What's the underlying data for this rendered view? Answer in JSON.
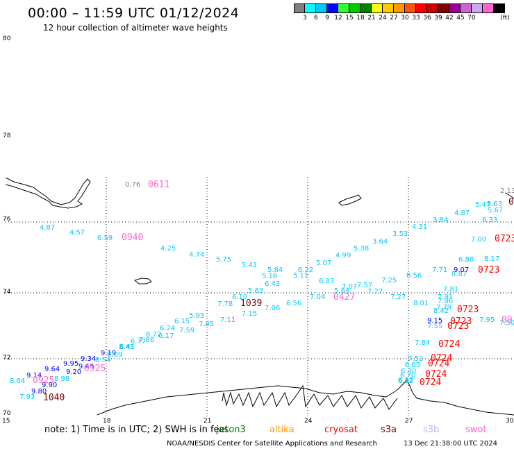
{
  "title": "00:00 – 11:59 UTC 01/12/2024",
  "subtitle": "12 hour collection of altimeter wave heights",
  "legend": {
    "unit": "(ft)",
    "colors": [
      "#808080",
      "#00ffff",
      "#00c8ff",
      "#0000ff",
      "#33ff33",
      "#00cc00",
      "#008000",
      "#ffff00",
      "#ffcc00",
      "#ff9900",
      "#ff5500",
      "#ff0000",
      "#cc0000",
      "#800000",
      "#990099",
      "#cc66cc",
      "#ccaaee",
      "#ff66cc",
      "#000000"
    ],
    "ticks": [
      "3",
      "6",
      "9",
      "12",
      "15",
      "18",
      "21",
      "24",
      "27",
      "30",
      "33",
      "36",
      "39",
      "42",
      "45",
      "70"
    ]
  },
  "axes": {
    "lat_labels": [
      "80",
      "78",
      "76",
      "74",
      "72",
      "70"
    ],
    "lon_labels": [
      "15",
      "18",
      "21",
      "24",
      "27",
      "30"
    ]
  },
  "observations": [
    {
      "text": "0.76",
      "color": "#808080"
    },
    {
      "text": "0611",
      "color": "#ff66cc",
      "big": true
    },
    {
      "text": "4.87",
      "color": "#00c8ff"
    },
    {
      "text": "4.57",
      "color": "#00c8ff"
    },
    {
      "text": "6.59",
      "color": "#00c8ff"
    },
    {
      "text": "0940",
      "color": "#ff66cc",
      "big": true
    },
    {
      "text": "4.25",
      "color": "#00c8ff"
    },
    {
      "text": "4.74",
      "color": "#00c8ff"
    },
    {
      "text": "5.75",
      "color": "#00c8ff"
    },
    {
      "text": "5.41",
      "color": "#00c8ff"
    },
    {
      "text": "5.84",
      "color": "#00c8ff"
    },
    {
      "text": "5.18",
      "color": "#00c8ff"
    },
    {
      "text": "6.22",
      "color": "#00c8ff"
    },
    {
      "text": "5.11",
      "color": "#00c8ff"
    },
    {
      "text": "5.07",
      "color": "#00c8ff"
    },
    {
      "text": "4.99",
      "color": "#00c8ff"
    },
    {
      "text": "5.38",
      "color": "#00c8ff"
    },
    {
      "text": "3.64",
      "color": "#00c8ff"
    },
    {
      "text": "3.53",
      "color": "#00c8ff"
    },
    {
      "text": "4.31",
      "color": "#00c8ff"
    },
    {
      "text": "3.84",
      "color": "#00c8ff"
    },
    {
      "text": "4.87",
      "color": "#00c8ff"
    },
    {
      "text": "5.47",
      "color": "#00c8ff"
    },
    {
      "text": "5.63",
      "color": "#00c8ff"
    },
    {
      "text": "5.67",
      "color": "#00c8ff"
    },
    {
      "text": "6.33",
      "color": "#00c8ff"
    },
    {
      "text": "2.13",
      "color": "#808080"
    },
    {
      "text": "3.46",
      "color": "#00c8ff"
    },
    {
      "text": "07",
      "color": "#800000",
      "big": true
    },
    {
      "text": "7.00",
      "color": "#00c8ff"
    },
    {
      "text": "0723",
      "color": "#ff0000",
      "big": true
    },
    {
      "text": "8.17",
      "color": "#00c8ff"
    },
    {
      "text": "6.88",
      "color": "#00c8ff"
    },
    {
      "text": "9.07",
      "color": "#0000ff"
    },
    {
      "text": "0723",
      "color": "#ff0000",
      "big": true
    },
    {
      "text": "7.71",
      "color": "#00c8ff"
    },
    {
      "text": "8.87",
      "color": "#00c8ff"
    },
    {
      "text": "8.56",
      "color": "#00c8ff"
    },
    {
      "text": "7.25",
      "color": "#00c8ff"
    },
    {
      "text": "6.83",
      "color": "#00c8ff"
    },
    {
      "text": "7.07",
      "color": "#00c8ff"
    },
    {
      "text": "7.57",
      "color": "#00c8ff"
    },
    {
      "text": "5.84",
      "color": "#00c8ff"
    },
    {
      "text": "7.27",
      "color": "#00c8ff"
    },
    {
      "text": "7.27",
      "color": "#00c8ff"
    },
    {
      "text": "6.43",
      "color": "#00c8ff"
    },
    {
      "text": "5.63",
      "color": "#00c8ff"
    },
    {
      "text": "6.10",
      "color": "#00c8ff"
    },
    {
      "text": "7.78",
      "color": "#00c8ff"
    },
    {
      "text": "1039",
      "color": "#800000",
      "big": true
    },
    {
      "text": "7.06",
      "color": "#00c8ff"
    },
    {
      "text": "6.56",
      "color": "#00c8ff"
    },
    {
      "text": "7.04",
      "color": "#00c8ff"
    },
    {
      "text": "0427",
      "color": "#ff66cc",
      "big": true
    },
    {
      "text": "7.15",
      "color": "#00c8ff"
    },
    {
      "text": "7.11",
      "color": "#00c8ff"
    },
    {
      "text": "5.93",
      "color": "#00c8ff"
    },
    {
      "text": "7.85",
      "color": "#00c8ff"
    },
    {
      "text": "6.15",
      "color": "#00c8ff"
    },
    {
      "text": "7.59",
      "color": "#00c8ff"
    },
    {
      "text": "6.24",
      "color": "#00c8ff"
    },
    {
      "text": "6.17",
      "color": "#00c8ff"
    },
    {
      "text": "6.72",
      "color": "#00c8ff"
    },
    {
      "text": "7.86",
      "color": "#00c8ff"
    },
    {
      "text": "6.77",
      "color": "#00c8ff"
    },
    {
      "text": "8.41",
      "color": "#00c8ff"
    },
    {
      "text": "8.43",
      "color": "#00c8ff"
    },
    {
      "text": "9.19",
      "color": "#0000ff"
    },
    {
      "text": "8.09",
      "color": "#00c8ff"
    },
    {
      "text": "9.34",
      "color": "#0000ff"
    },
    {
      "text": "8.54",
      "color": "#00c8ff"
    },
    {
      "text": "9.95",
      "color": "#0000ff"
    },
    {
      "text": "9.46",
      "color": "#0000ff"
    },
    {
      "text": "0925",
      "color": "#ff66cc",
      "big": true
    },
    {
      "text": "9.20",
      "color": "#0000ff"
    },
    {
      "text": "9.64",
      "color": "#0000ff"
    },
    {
      "text": "9.14",
      "color": "#0000ff"
    },
    {
      "text": "8.64",
      "color": "#00c8ff"
    },
    {
      "text": "8.98",
      "color": "#00c8ff"
    },
    {
      "text": "0925",
      "color": "#ff66cc",
      "big": true
    },
    {
      "text": "9.90",
      "color": "#0000ff"
    },
    {
      "text": "9.80",
      "color": "#0000ff"
    },
    {
      "text": "7.93",
      "color": "#00c8ff"
    },
    {
      "text": "1040",
      "color": "#800000",
      "big": true
    },
    {
      "text": "8.01",
      "color": "#00c8ff"
    },
    {
      "text": "7.81",
      "color": "#00c8ff"
    },
    {
      "text": "7.91",
      "color": "#00c8ff"
    },
    {
      "text": "7.96",
      "color": "#00c8ff"
    },
    {
      "text": "7.79",
      "color": "#00c8ff"
    },
    {
      "text": "8.42",
      "color": "#00c8ff"
    },
    {
      "text": "0723",
      "color": "#ff0000",
      "big": true
    },
    {
      "text": "0723",
      "color": "#ff0000",
      "big": true
    },
    {
      "text": "0723",
      "color": "#ff0000",
      "big": true
    },
    {
      "text": "7.95",
      "color": "#00c8ff"
    },
    {
      "text": "7.50",
      "color": "#00c8ff"
    },
    {
      "text": "09",
      "color": "#ff66cc",
      "big": true
    },
    {
      "text": "9.15",
      "color": "#0000ff"
    },
    {
      "text": "7.55",
      "color": "#00c8ff"
    },
    {
      "text": "7.84",
      "color": "#00c8ff"
    },
    {
      "text": "0724",
      "color": "#ff0000",
      "big": true
    },
    {
      "text": "7.52",
      "color": "#00c8ff"
    },
    {
      "text": "0724",
      "color": "#ff0000",
      "big": true
    },
    {
      "text": "6.63",
      "color": "#00c8ff"
    },
    {
      "text": "0724",
      "color": "#ff0000",
      "big": true
    },
    {
      "text": "6.30",
      "color": "#00c8ff"
    },
    {
      "text": "0724",
      "color": "#ff0000",
      "big": true
    },
    {
      "text": "6.70",
      "color": "#00c8ff"
    },
    {
      "text": "0724",
      "color": "#ff0000",
      "big": true
    },
    {
      "text": "6.42",
      "color": "#00c8ff"
    },
    {
      "text": "6.52",
      "color": "#00c8ff"
    }
  ],
  "footer": {
    "note": "note: 1) Time is in UTC; 2) SWH is in feet",
    "satellites": [
      {
        "name": "jason3",
        "color": "#008000"
      },
      {
        "name": "altika",
        "color": "#ff9900"
      },
      {
        "name": "cryosat",
        "color": "#ff0000"
      },
      {
        "name": "s3a",
        "color": "#800000"
      },
      {
        "name": "s3b",
        "color": "#ccaaee"
      },
      {
        "name": "swot",
        "color": "#ff66cc"
      }
    ],
    "credit": "NOAA/NESDIS Center for Satellite Applications and Research",
    "timestamp": "13 Dec 21:38:00 UTC 2024"
  }
}
